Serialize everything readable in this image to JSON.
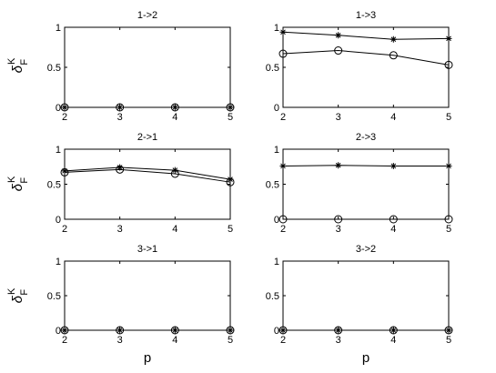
{
  "figure": {
    "xlabel": "p",
    "ylabel": {
      "symbol": "δ",
      "superscript": "K",
      "subscript": "F"
    }
  },
  "chart_data": [
    {
      "type": "line",
      "title": "1->2",
      "x": [
        2,
        3,
        4,
        5
      ],
      "xlim": [
        2,
        5
      ],
      "ylim": [
        0,
        1
      ],
      "xticks": [
        "2",
        "3",
        "4",
        "5"
      ],
      "yticks": [
        "0",
        "0.5",
        "1"
      ],
      "series": [
        {
          "marker": "star",
          "values": [
            0,
            0,
            0,
            0
          ]
        },
        {
          "marker": "circle",
          "values": [
            0,
            0,
            0,
            0
          ]
        }
      ]
    },
    {
      "type": "line",
      "title": "1->3",
      "x": [
        2,
        3,
        4,
        5
      ],
      "xlim": [
        2,
        5
      ],
      "ylim": [
        0,
        1
      ],
      "xticks": [
        "2",
        "3",
        "4",
        "5"
      ],
      "yticks": [
        "0",
        "0.5",
        "1"
      ],
      "series": [
        {
          "marker": "star",
          "values": [
            0.94,
            0.9,
            0.85,
            0.86
          ]
        },
        {
          "marker": "circle",
          "values": [
            0.67,
            0.71,
            0.65,
            0.53
          ]
        }
      ]
    },
    {
      "type": "line",
      "title": "2->1",
      "x": [
        2,
        3,
        4,
        5
      ],
      "xlim": [
        2,
        5
      ],
      "ylim": [
        0,
        1
      ],
      "xticks": [
        "2",
        "3",
        "4",
        "5"
      ],
      "yticks": [
        "0",
        "0.5",
        "1"
      ],
      "series": [
        {
          "marker": "star",
          "values": [
            0.69,
            0.74,
            0.7,
            0.57
          ]
        },
        {
          "marker": "circle",
          "values": [
            0.67,
            0.71,
            0.65,
            0.53
          ]
        }
      ]
    },
    {
      "type": "line",
      "title": "2->3",
      "x": [
        2,
        3,
        4,
        5
      ],
      "xlim": [
        2,
        5
      ],
      "ylim": [
        0,
        1
      ],
      "xticks": [
        "2",
        "3",
        "4",
        "5"
      ],
      "yticks": [
        "0",
        "0.5",
        "1"
      ],
      "series": [
        {
          "marker": "star",
          "values": [
            0.76,
            0.77,
            0.76,
            0.76
          ]
        },
        {
          "marker": "circle",
          "values": [
            0,
            0,
            0,
            0
          ]
        }
      ]
    },
    {
      "type": "line",
      "title": "3->1",
      "x": [
        2,
        3,
        4,
        5
      ],
      "xlim": [
        2,
        5
      ],
      "ylim": [
        0,
        1
      ],
      "xticks": [
        "2",
        "3",
        "4",
        "5"
      ],
      "yticks": [
        "0",
        "0.5",
        "1"
      ],
      "series": [
        {
          "marker": "star",
          "values": [
            0,
            0,
            0,
            0
          ]
        },
        {
          "marker": "circle",
          "values": [
            0,
            0,
            0,
            0
          ]
        }
      ]
    },
    {
      "type": "line",
      "title": "3->2",
      "x": [
        2,
        3,
        4,
        5
      ],
      "xlim": [
        2,
        5
      ],
      "ylim": [
        0,
        1
      ],
      "xticks": [
        "2",
        "3",
        "4",
        "5"
      ],
      "yticks": [
        "0",
        "0.5",
        "1"
      ],
      "series": [
        {
          "marker": "star",
          "values": [
            0,
            0,
            0,
            0
          ]
        },
        {
          "marker": "circle",
          "values": [
            0,
            0,
            0,
            0
          ]
        }
      ]
    }
  ]
}
